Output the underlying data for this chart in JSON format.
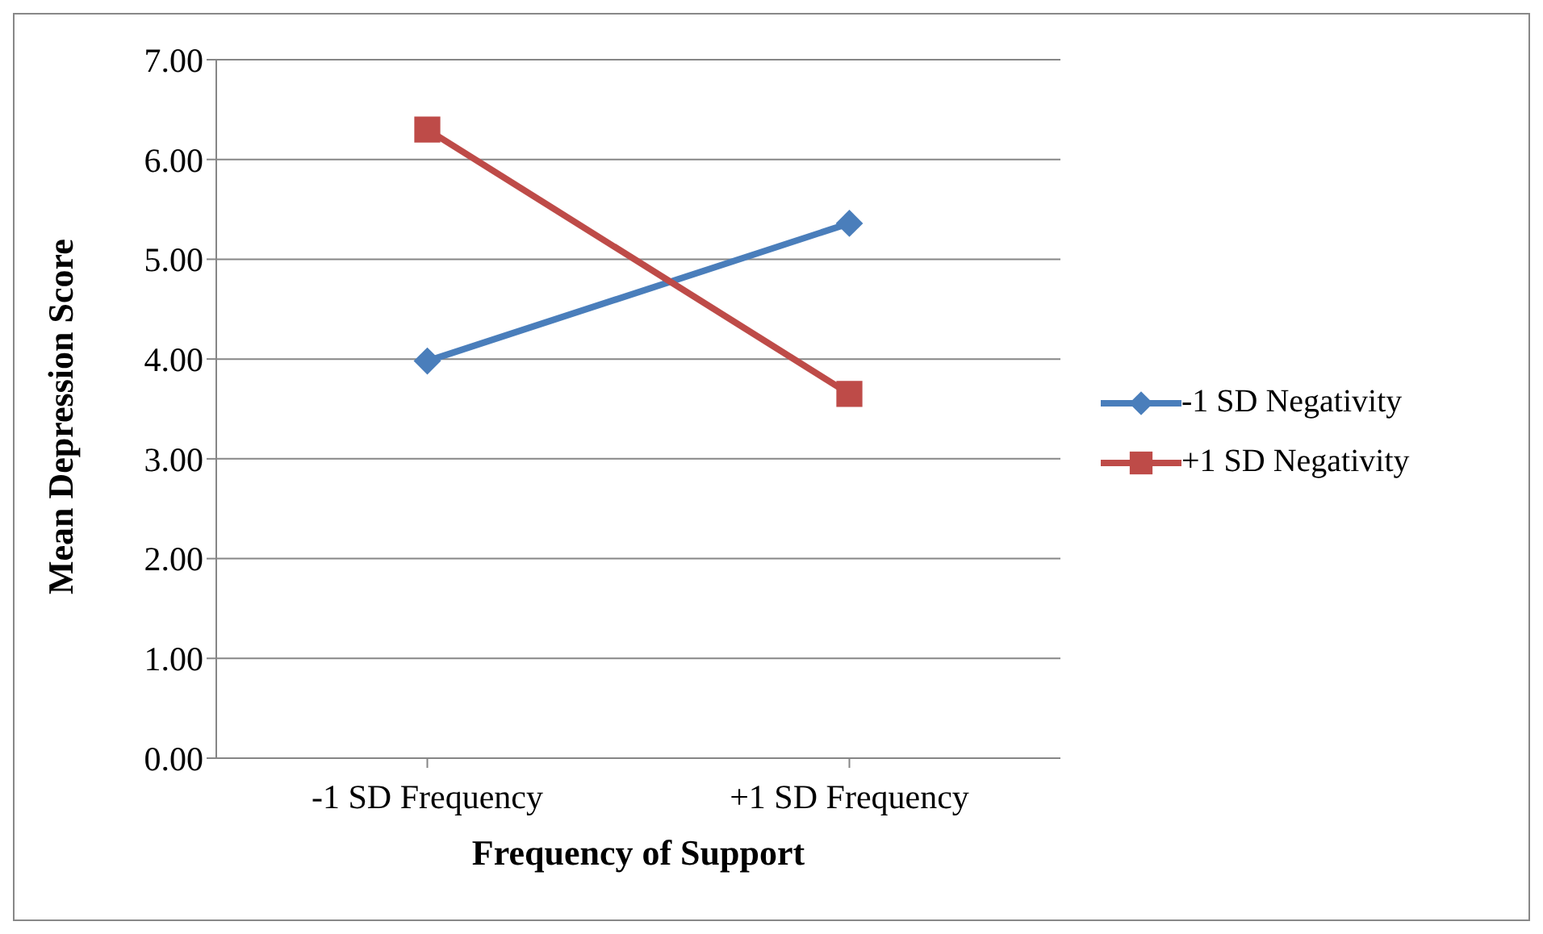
{
  "chart_data": {
    "type": "line",
    "xlabel": "Frequency of Support",
    "ylabel": "Mean Depression Score",
    "categories": [
      "-1 SD Frequency",
      "+1 SD Frequency"
    ],
    "series": [
      {
        "name": "-1 SD Negativity",
        "color": "#4a7ebb",
        "marker": "diamond",
        "values": [
          3.98,
          5.36
        ]
      },
      {
        "name": "+1 SD Negativity",
        "color": "#be4b48",
        "marker": "square",
        "values": [
          6.3,
          3.65
        ]
      }
    ],
    "ylim": [
      0,
      7
    ],
    "yticks": [
      {
        "value": 0,
        "label": "0.00"
      },
      {
        "value": 1,
        "label": "1.00"
      },
      {
        "value": 2,
        "label": "2.00"
      },
      {
        "value": 3,
        "label": "3.00"
      },
      {
        "value": 4,
        "label": "4.00"
      },
      {
        "value": 5,
        "label": "5.00"
      },
      {
        "value": 6,
        "label": "6.00"
      },
      {
        "value": 7,
        "label": "7.00"
      }
    ],
    "grid": "y",
    "legend": "right",
    "line_style": "solid"
  }
}
